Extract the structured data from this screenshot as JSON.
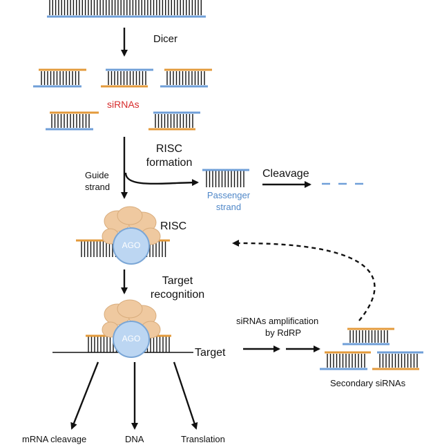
{
  "labels": {
    "dicer": "Dicer",
    "sirnas": "siRNAs",
    "risc_formation_1": "RISC",
    "risc_formation_2": "formation",
    "guide_1": "Guide",
    "guide_2": "strand",
    "passenger_1": "Passenger",
    "passenger_2": "strand",
    "cleavage": "Cleavage",
    "risc": "RISC",
    "ago": "AGO",
    "target_recognition_1": "Target",
    "target_recognition_2": "recognition",
    "target": "Target",
    "amplification_1": "siRNAs amplification",
    "amplification_2": "by RdRP",
    "secondary": "Secondary siRNAs",
    "out_mrna": "mRNA cleavage",
    "out_dna": "DNA",
    "out_translation": "Translation"
  },
  "colors": {
    "orange": "#e39a3b",
    "blue": "#6f9fd8",
    "red_label": "#d62b2b",
    "passenger_label": "#4f87c8",
    "ago_fill": "#bcd6f2",
    "ago_stroke": "#7aa6d6",
    "cap_fill": "#efc9a0"
  }
}
